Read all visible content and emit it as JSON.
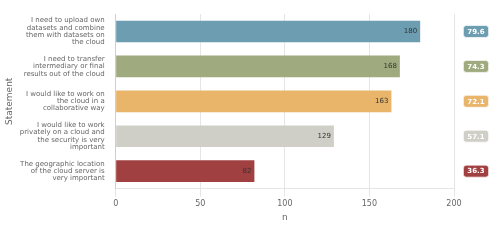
{
  "chart_data": {
    "type": "bar",
    "orientation": "horizontal",
    "categories": [
      "I need to upload own\ndatasets and combine\nthem with datasets on\nthe cloud",
      "I need to transfer\nintermediary or final\nresults out of the cloud",
      "I would like to work on\nthe cloud in a\ncollaborative way",
      "I would like to work\nprivately on a cloud and\nthe security is very\nimportant",
      "The geographic location\nof the cloud server is\nvery important"
    ],
    "values": [
      180,
      168,
      163,
      129,
      82
    ],
    "percentages": [
      79.6,
      74.3,
      72.1,
      57.1,
      36.3
    ],
    "colors": [
      "#6d9db1",
      "#9faa7e",
      "#e8b56a",
      "#d0cfc7",
      "#a04040"
    ],
    "xlabel": "n",
    "ylabel": "Statement",
    "xlim": [
      0,
      200
    ],
    "xticks": [
      0,
      50,
      100,
      150,
      200
    ],
    "grid": true,
    "data_labels": true
  }
}
